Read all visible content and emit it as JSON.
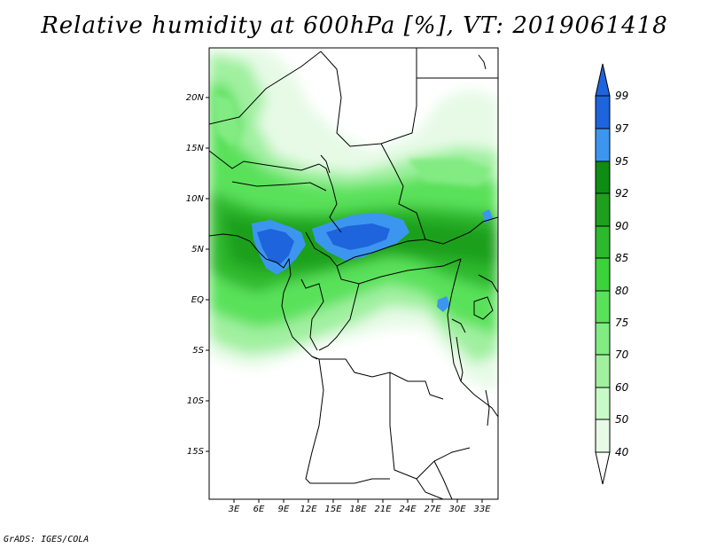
{
  "title": "Relative humidity at 600hPa [%], VT: 2019061418",
  "credit": "GrADS: IGES/COLA",
  "map": {
    "lat_labels": [
      "20N",
      "15N",
      "10N",
      "5N",
      "EQ",
      "5S",
      "10S",
      "15S"
    ],
    "lon_labels": [
      "3E",
      "6E",
      "9E",
      "12E",
      "15E",
      "18E",
      "21E",
      "24E",
      "27E",
      "30E",
      "33E"
    ]
  },
  "colorbar": {
    "labels": [
      "99",
      "97",
      "95",
      "92",
      "90",
      "85",
      "80",
      "75",
      "70",
      "60",
      "50",
      "40"
    ],
    "colors": [
      "#1e64dc",
      "#1e64dc",
      "#3c96f0",
      "#0f8c14",
      "#1ea01e",
      "#2db92d",
      "#3cd23c",
      "#5ae15a",
      "#82eb82",
      "#a0f0a0",
      "#c8fac8",
      "#e6fae6",
      "#ffffff"
    ]
  },
  "humidity_colors": {
    "c40": "#e6fae6",
    "c50": "#c8fac8",
    "c60": "#a0f0a0",
    "c70": "#82eb82",
    "c75": "#5ae15a",
    "c80": "#3cd23c",
    "c85": "#2db92d",
    "c90": "#1ea01e",
    "c92": "#0f8c14",
    "c95": "#3c96f0",
    "c97": "#1e64dc"
  }
}
